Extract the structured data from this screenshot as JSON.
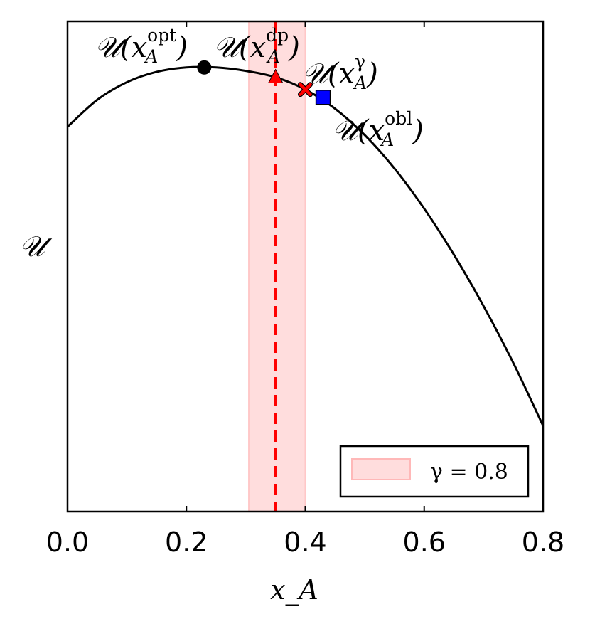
{
  "chart_data": {
    "type": "line",
    "xlabel": "x_A",
    "ylabel": "𝒰",
    "xlim": [
      0.0,
      0.8
    ],
    "x_ticks": [
      0.0,
      0.2,
      0.4,
      0.6,
      0.8
    ],
    "x_tick_labels": [
      "0.0",
      "0.2",
      "0.4",
      "0.6",
      "0.8"
    ],
    "y_ticks_shown": false,
    "series": [
      {
        "style": "solid",
        "color": "#000000",
        "x": [
          0.0,
          0.05,
          0.1,
          0.15,
          0.2,
          0.25,
          0.3,
          0.35,
          0.4,
          0.45,
          0.5,
          0.55,
          0.6,
          0.65,
          0.7,
          0.75,
          0.8
        ],
        "y": [
          0.785,
          0.84,
          0.876,
          0.897,
          0.906,
          0.906,
          0.899,
          0.886,
          0.861,
          0.822,
          0.768,
          0.7,
          0.618,
          0.524,
          0.419,
          0.303,
          0.175
        ]
      }
    ],
    "markers": [
      {
        "label_base": "𝒰(x",
        "label_sub": "A",
        "label_sup": "opt",
        "label_close": ")",
        "x": 0.23,
        "y": 0.906,
        "shape": "circle",
        "color": "#000000"
      },
      {
        "label_base": "𝒰(x",
        "label_sub": "A",
        "label_sup": "dp",
        "label_close": ")",
        "x": 0.35,
        "y": 0.886,
        "shape": "triangle",
        "color": "#ff0000"
      },
      {
        "label_base": "𝒰(x",
        "label_sub": "A",
        "label_sup": "γ",
        "label_close": ")",
        "x": 0.4,
        "y": 0.861,
        "shape": "x",
        "color": "#ff0000"
      },
      {
        "label_base": "𝒰(x",
        "label_sub": "A",
        "label_sup": "obl",
        "label_close": ")",
        "x": 0.43,
        "y": 0.845,
        "shape": "square",
        "color": "#0000ff"
      }
    ],
    "vline": {
      "x": 0.35,
      "style": "dashed",
      "color": "#ff0000"
    },
    "band": {
      "x0": 0.305,
      "x1": 0.4,
      "color": "#ffdddd"
    },
    "legend": {
      "placement": "bottom-right",
      "entries": [
        {
          "label": "γ = 0.8"
        }
      ]
    },
    "grid": false
  }
}
